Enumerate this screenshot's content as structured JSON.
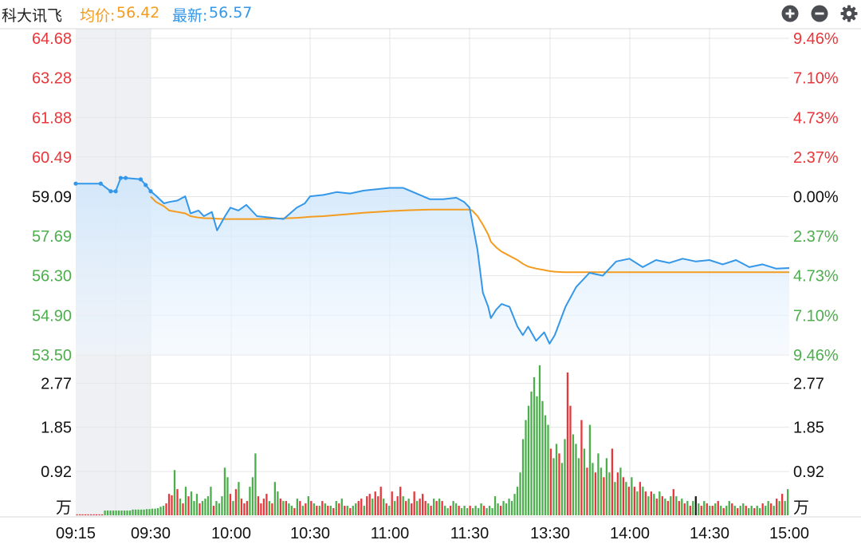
{
  "header": {
    "stock_name": "科大讯飞",
    "avg_label": "均价:",
    "avg_value": "56.42",
    "last_label": "最新:",
    "last_value": "56.57"
  },
  "controls": {
    "zoom_in_icon": "plus-circle-icon",
    "zoom_out_icon": "minus-circle-icon",
    "settings_icon": "gear-icon"
  },
  "colors": {
    "price_line": "#3497e8",
    "avg_line": "#f39c1f",
    "up": "#e8363a",
    "down": "#4cae4c",
    "neutral": "#1a1a1a",
    "grid": "#e6e6e6",
    "auction_bg": "#eef0f3"
  },
  "chart_data": [
    {
      "type": "line",
      "name": "intraday-price",
      "ylim": [
        53.5,
        64.68
      ],
      "prev_close": 59.09,
      "y_ticks_left": [
        "64.68",
        "63.28",
        "61.88",
        "60.49",
        "59.09",
        "57.69",
        "56.30",
        "54.90",
        "53.50"
      ],
      "y_ticks_right": [
        "9.46%",
        "7.10%",
        "4.73%",
        "2.37%",
        "0.00%",
        "2.37%",
        "4.73%",
        "7.10%",
        "9.46%"
      ],
      "x_ticks": [
        "09:15",
        "09:30",
        "10:00",
        "10:30",
        "11:00",
        "11:30",
        "13:30",
        "14:00",
        "14:30",
        "15:00"
      ],
      "x": [
        "09:15",
        "09:20",
        "09:22",
        "09:23",
        "09:24",
        "09:25",
        "09:28",
        "09:29",
        "09:30",
        "09:32",
        "09:35",
        "09:37",
        "09:40",
        "09:43",
        "09:45",
        "09:48",
        "09:50",
        "09:53",
        "09:55",
        "09:58",
        "10:00",
        "10:03",
        "10:06",
        "10:10",
        "10:15",
        "10:20",
        "10:25",
        "10:28",
        "10:30",
        "10:35",
        "10:40",
        "10:45",
        "10:50",
        "10:55",
        "11:00",
        "11:05",
        "11:10",
        "11:15",
        "11:20",
        "11:25",
        "11:28",
        "11:30",
        "13:01",
        "13:03",
        "13:05",
        "13:07",
        "13:08",
        "13:10",
        "13:12",
        "13:15",
        "13:18",
        "13:20",
        "13:22",
        "13:25",
        "13:28",
        "13:30",
        "13:32",
        "13:34",
        "13:36",
        "13:40",
        "13:45",
        "13:50",
        "13:55",
        "14:00",
        "14:05",
        "14:10",
        "14:15",
        "14:20",
        "14:25",
        "14:30",
        "14:35",
        "14:40",
        "14:45",
        "14:50",
        "14:55",
        "15:00"
      ],
      "series": [
        {
          "values": [
            59.55,
            59.55,
            59.28,
            59.28,
            59.75,
            59.75,
            59.7,
            59.5,
            59.28,
            59.12,
            58.85,
            58.9,
            58.95,
            59.1,
            58.5,
            58.6,
            58.4,
            58.55,
            57.9,
            58.4,
            58.7,
            58.6,
            58.8,
            58.4,
            58.35,
            58.3,
            58.7,
            58.85,
            59.1,
            59.15,
            59.25,
            59.2,
            59.3,
            59.35,
            59.4,
            59.4,
            59.2,
            59.0,
            59.0,
            59.05,
            58.9,
            58.7,
            58.2,
            57.2,
            55.7,
            55.2,
            54.8,
            55.1,
            55.3,
            55.2,
            54.5,
            54.2,
            54.5,
            54.0,
            54.3,
            53.9,
            54.2,
            54.7,
            55.2,
            55.9,
            56.4,
            56.3,
            56.8,
            56.9,
            56.6,
            56.85,
            56.75,
            56.9,
            56.8,
            56.85,
            56.7,
            56.85,
            56.6,
            56.7,
            56.55,
            56.57
          ]
        },
        {
          "name": "均价",
          "values": [
            null,
            null,
            null,
            null,
            null,
            null,
            null,
            null,
            59.09,
            58.9,
            58.75,
            58.6,
            58.55,
            58.5,
            58.4,
            58.35,
            58.33,
            58.32,
            58.31,
            58.3,
            58.3,
            58.3,
            58.3,
            58.3,
            58.31,
            58.32,
            58.34,
            58.36,
            58.38,
            58.4,
            58.44,
            58.48,
            58.52,
            58.55,
            58.58,
            58.6,
            58.62,
            58.63,
            58.63,
            58.63,
            58.63,
            58.63,
            58.6,
            58.4,
            58.1,
            57.75,
            57.5,
            57.3,
            57.15,
            57.0,
            56.85,
            56.72,
            56.62,
            56.55,
            56.5,
            56.46,
            56.44,
            56.43,
            56.42,
            56.42,
            56.42,
            56.42,
            56.42,
            56.42,
            56.42,
            56.42,
            56.42,
            56.42,
            56.42,
            56.42,
            56.42,
            56.42,
            56.42,
            56.42,
            56.42,
            56.42
          ]
        }
      ]
    },
    {
      "type": "bar",
      "name": "volume",
      "ylim": [
        0,
        3.2
      ],
      "y_ticks": [
        "2.77",
        "1.85",
        "0.92"
      ],
      "unit": "万",
      "x_ticks": [
        "09:15",
        "09:30",
        "10:00",
        "10:30",
        "11:00",
        "11:30",
        "13:30",
        "14:00",
        "14:30",
        "15:00"
      ],
      "bars": [
        [
          0.02,
          "u"
        ],
        [
          0.02,
          "u"
        ],
        [
          0.02,
          "u"
        ],
        [
          0.02,
          "u"
        ],
        [
          0.02,
          "u"
        ],
        [
          0.02,
          "u"
        ],
        [
          0.02,
          "u"
        ],
        [
          0.02,
          "u"
        ],
        [
          0.02,
          "u"
        ],
        [
          0.02,
          "u"
        ],
        [
          0.1,
          "d"
        ],
        [
          0.1,
          "d"
        ],
        [
          0.1,
          "d"
        ],
        [
          0.1,
          "d"
        ],
        [
          0.1,
          "d"
        ],
        [
          0.1,
          "d"
        ],
        [
          0.1,
          "d"
        ],
        [
          0.1,
          "d"
        ],
        [
          0.1,
          "d"
        ],
        [
          0.1,
          "d"
        ],
        [
          0.12,
          "d"
        ],
        [
          0.12,
          "d"
        ],
        [
          0.12,
          "d"
        ],
        [
          0.12,
          "d"
        ],
        [
          0.12,
          "d"
        ],
        [
          0.13,
          "d"
        ],
        [
          0.13,
          "d"
        ],
        [
          0.14,
          "d"
        ],
        [
          0.14,
          "d"
        ],
        [
          0.15,
          "d"
        ],
        [
          0.18,
          "d"
        ],
        [
          0.2,
          "d"
        ],
        [
          0.25,
          "u"
        ],
        [
          0.45,
          "u"
        ],
        [
          0.42,
          "u"
        ],
        [
          0.95,
          "d"
        ],
        [
          0.55,
          "u"
        ],
        [
          0.35,
          "d"
        ],
        [
          0.25,
          "u"
        ],
        [
          0.6,
          "d"
        ],
        [
          0.4,
          "u"
        ],
        [
          0.5,
          "d"
        ],
        [
          0.3,
          "d"
        ],
        [
          0.45,
          "d"
        ],
        [
          0.25,
          "u"
        ],
        [
          0.3,
          "d"
        ],
        [
          0.35,
          "d"
        ],
        [
          0.4,
          "d"
        ],
        [
          0.6,
          "d"
        ],
        [
          0.2,
          "u"
        ],
        [
          0.3,
          "d"
        ],
        [
          0.25,
          "d"
        ],
        [
          0.4,
          "d"
        ],
        [
          1.0,
          "d"
        ],
        [
          0.8,
          "d"
        ],
        [
          0.45,
          "u"
        ],
        [
          0.3,
          "d"
        ],
        [
          0.55,
          "u"
        ],
        [
          0.7,
          "d"
        ],
        [
          0.35,
          "u"
        ],
        [
          0.25,
          "u"
        ],
        [
          0.3,
          "u"
        ],
        [
          0.6,
          "d"
        ],
        [
          0.8,
          "d"
        ],
        [
          1.3,
          "d"
        ],
        [
          0.4,
          "u"
        ],
        [
          0.25,
          "u"
        ],
        [
          0.35,
          "u"
        ],
        [
          0.45,
          "u"
        ],
        [
          0.3,
          "d"
        ],
        [
          0.25,
          "u"
        ],
        [
          0.7,
          "d"
        ],
        [
          0.5,
          "d"
        ],
        [
          0.35,
          "u"
        ],
        [
          0.3,
          "d"
        ],
        [
          0.3,
          "u"
        ],
        [
          0.25,
          "d"
        ],
        [
          0.2,
          "d"
        ],
        [
          0.15,
          "u"
        ],
        [
          0.35,
          "d"
        ],
        [
          0.3,
          "u"
        ],
        [
          0.2,
          "d"
        ],
        [
          0.25,
          "u"
        ],
        [
          0.4,
          "d"
        ],
        [
          0.3,
          "u"
        ],
        [
          0.25,
          "d"
        ],
        [
          0.2,
          "u"
        ],
        [
          0.2,
          "d"
        ],
        [
          0.3,
          "u"
        ],
        [
          0.25,
          "d"
        ],
        [
          0.2,
          "u"
        ],
        [
          0.2,
          "d"
        ],
        [
          0.15,
          "u"
        ],
        [
          0.3,
          "d"
        ],
        [
          0.25,
          "u"
        ],
        [
          0.35,
          "d"
        ],
        [
          0.2,
          "u"
        ],
        [
          0.2,
          "d"
        ],
        [
          0.15,
          "u"
        ],
        [
          0.2,
          "d"
        ],
        [
          0.25,
          "d"
        ],
        [
          0.3,
          "u"
        ],
        [
          0.35,
          "u"
        ],
        [
          0.2,
          "d"
        ],
        [
          0.4,
          "u"
        ],
        [
          0.45,
          "u"
        ],
        [
          0.35,
          "d"
        ],
        [
          0.5,
          "u"
        ],
        [
          0.4,
          "u"
        ],
        [
          0.6,
          "u"
        ],
        [
          0.35,
          "d"
        ],
        [
          0.25,
          "u"
        ],
        [
          0.2,
          "d"
        ],
        [
          0.5,
          "u"
        ],
        [
          0.3,
          "d"
        ],
        [
          0.4,
          "u"
        ],
        [
          0.6,
          "u"
        ],
        [
          0.4,
          "d"
        ],
        [
          0.3,
          "u"
        ],
        [
          0.35,
          "d"
        ],
        [
          0.25,
          "u"
        ],
        [
          0.5,
          "u"
        ],
        [
          0.3,
          "d"
        ],
        [
          0.35,
          "u"
        ],
        [
          0.45,
          "u"
        ],
        [
          0.3,
          "u"
        ],
        [
          0.25,
          "d"
        ],
        [
          0.2,
          "u"
        ],
        [
          0.35,
          "d"
        ],
        [
          0.3,
          "u"
        ],
        [
          0.35,
          "d"
        ],
        [
          0.3,
          "u"
        ],
        [
          0.2,
          "d"
        ],
        [
          0.15,
          "d"
        ],
        [
          0.2,
          "u"
        ],
        [
          0.3,
          "d"
        ],
        [
          0.25,
          "d"
        ],
        [
          0.2,
          "u"
        ],
        [
          0.15,
          "d"
        ],
        [
          0.2,
          "d"
        ],
        [
          0.15,
          "d"
        ],
        [
          0.2,
          "u"
        ],
        [
          0.15,
          "d"
        ],
        [
          0.2,
          "d"
        ],
        [
          0.15,
          "d"
        ],
        [
          0.25,
          "d"
        ],
        [
          0.2,
          "u"
        ],
        [
          0.15,
          "d"
        ],
        [
          0.2,
          "d"
        ],
        [
          0.15,
          "d"
        ],
        [
          0.4,
          "d"
        ],
        [
          0.25,
          "d"
        ],
        [
          0.2,
          "u"
        ],
        [
          0.3,
          "d"
        ],
        [
          0.25,
          "d"
        ],
        [
          0.35,
          "d"
        ],
        [
          0.3,
          "d"
        ],
        [
          0.45,
          "d"
        ],
        [
          0.6,
          "d"
        ],
        [
          0.9,
          "d"
        ],
        [
          1.6,
          "d"
        ],
        [
          2.0,
          "d"
        ],
        [
          2.3,
          "d"
        ],
        [
          2.6,
          "d"
        ],
        [
          2.9,
          "d"
        ],
        [
          2.5,
          "d"
        ],
        [
          3.15,
          "d"
        ],
        [
          2.4,
          "d"
        ],
        [
          2.1,
          "d"
        ],
        [
          1.9,
          "d"
        ],
        [
          1.4,
          "u"
        ],
        [
          1.2,
          "d"
        ],
        [
          1.5,
          "d"
        ],
        [
          1.3,
          "u"
        ],
        [
          1.1,
          "d"
        ],
        [
          1.6,
          "d"
        ],
        [
          3.0,
          "u"
        ],
        [
          2.3,
          "u"
        ],
        [
          1.7,
          "d"
        ],
        [
          1.5,
          "d"
        ],
        [
          1.2,
          "d"
        ],
        [
          2.0,
          "u"
        ],
        [
          1.4,
          "d"
        ],
        [
          1.0,
          "u"
        ],
        [
          1.9,
          "d"
        ],
        [
          1.1,
          "d"
        ],
        [
          0.9,
          "u"
        ],
        [
          1.3,
          "d"
        ],
        [
          1.0,
          "d"
        ],
        [
          0.8,
          "u"
        ],
        [
          1.2,
          "d"
        ],
        [
          0.9,
          "d"
        ],
        [
          1.4,
          "u"
        ],
        [
          0.7,
          "d"
        ],
        [
          0.9,
          "u"
        ],
        [
          1.0,
          "d"
        ],
        [
          0.8,
          "u"
        ],
        [
          0.7,
          "d"
        ],
        [
          0.6,
          "u"
        ],
        [
          0.8,
          "d"
        ],
        [
          0.6,
          "u"
        ],
        [
          0.5,
          "d"
        ],
        [
          0.7,
          "u"
        ],
        [
          0.6,
          "d"
        ],
        [
          0.5,
          "u"
        ],
        [
          0.4,
          "d"
        ],
        [
          0.5,
          "u"
        ],
        [
          0.45,
          "d"
        ],
        [
          0.35,
          "u"
        ],
        [
          0.5,
          "d"
        ],
        [
          0.4,
          "u"
        ],
        [
          0.35,
          "d"
        ],
        [
          0.3,
          "u"
        ],
        [
          0.4,
          "d"
        ],
        [
          0.55,
          "u"
        ],
        [
          0.4,
          "d"
        ],
        [
          0.3,
          "u"
        ],
        [
          0.35,
          "d"
        ],
        [
          0.25,
          "u"
        ],
        [
          0.3,
          "d"
        ],
        [
          0.2,
          "u"
        ],
        [
          0.3,
          "d"
        ],
        [
          0.4,
          "n"
        ],
        [
          0.25,
          "d"
        ],
        [
          0.2,
          "u"
        ],
        [
          0.3,
          "d"
        ],
        [
          0.25,
          "u"
        ],
        [
          0.2,
          "d"
        ],
        [
          0.2,
          "u"
        ],
        [
          0.25,
          "d"
        ],
        [
          0.3,
          "u"
        ],
        [
          0.2,
          "d"
        ],
        [
          0.15,
          "u"
        ],
        [
          0.2,
          "d"
        ],
        [
          0.3,
          "d"
        ],
        [
          0.25,
          "u"
        ],
        [
          0.2,
          "d"
        ],
        [
          0.15,
          "u"
        ],
        [
          0.2,
          "d"
        ],
        [
          0.25,
          "d"
        ],
        [
          0.2,
          "u"
        ],
        [
          0.15,
          "d"
        ],
        [
          0.2,
          "d"
        ],
        [
          0.15,
          "u"
        ],
        [
          0.2,
          "d"
        ],
        [
          0.15,
          "d"
        ],
        [
          0.25,
          "u"
        ],
        [
          0.2,
          "d"
        ],
        [
          0.3,
          "d"
        ],
        [
          0.25,
          "u"
        ],
        [
          0.2,
          "d"
        ],
        [
          0.35,
          "u"
        ],
        [
          0.3,
          "d"
        ],
        [
          0.45,
          "u"
        ],
        [
          0.3,
          "d"
        ],
        [
          0.55,
          "d"
        ]
      ]
    }
  ]
}
